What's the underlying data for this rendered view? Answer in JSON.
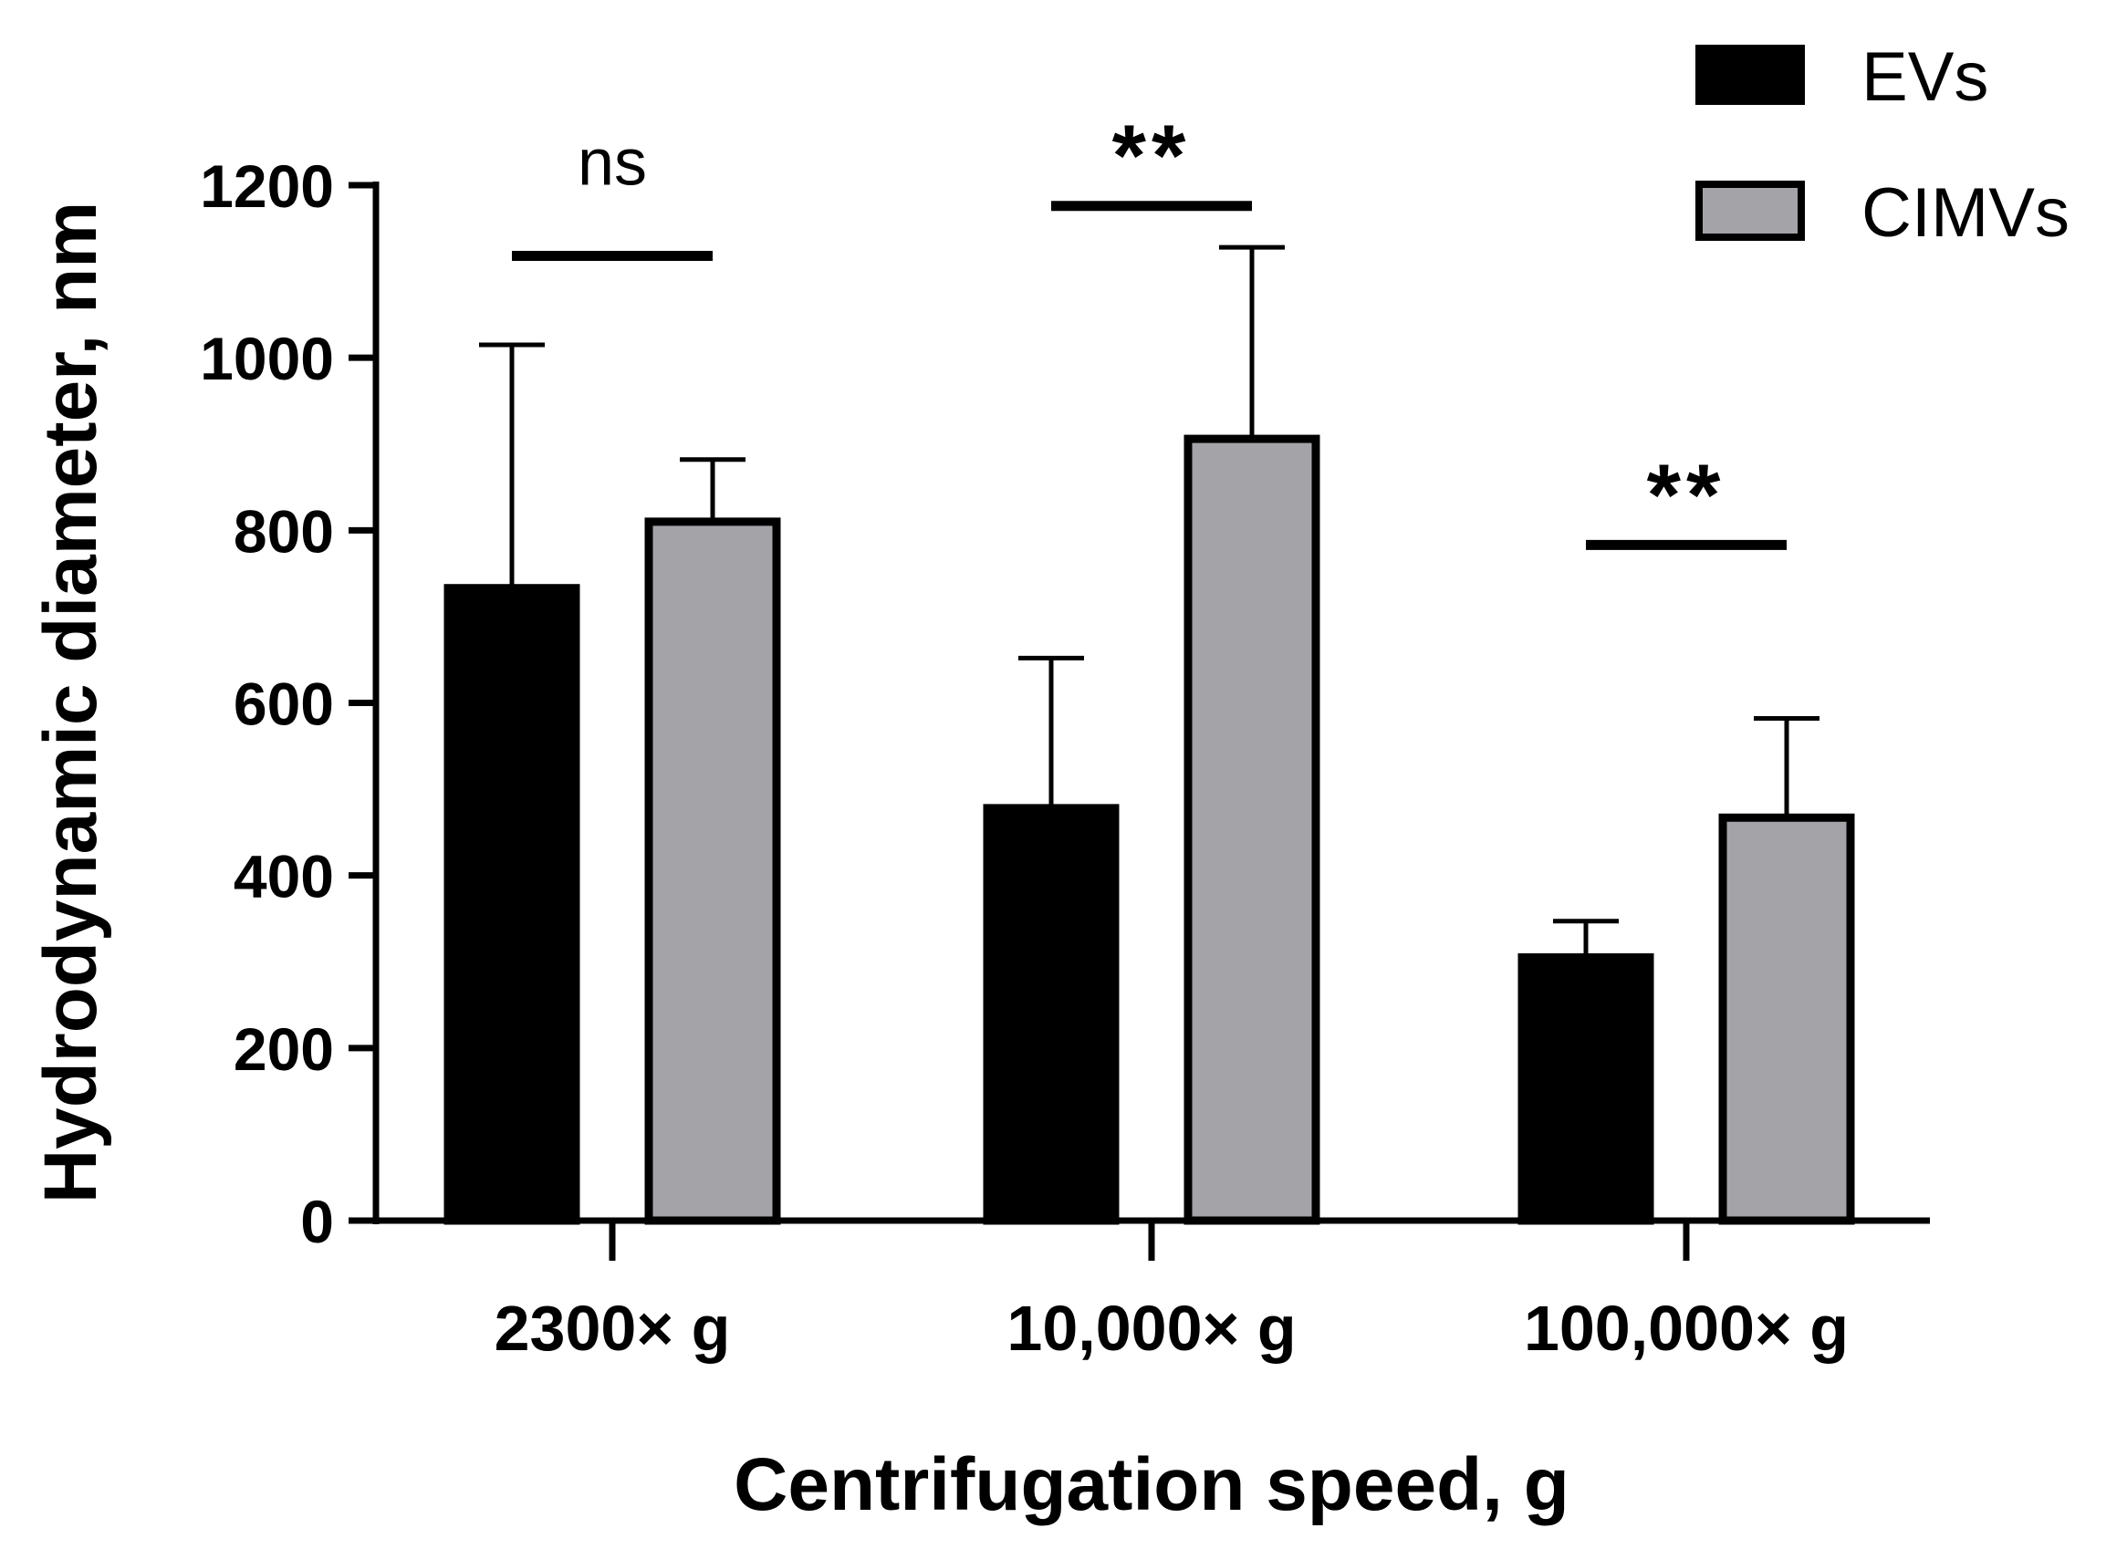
{
  "chart_data": {
    "type": "bar",
    "title": "",
    "xlabel": "Centrifugation speed, g",
    "ylabel": "Hydrodynamic diameter, nm",
    "ylim": [
      0,
      1200
    ],
    "yticks": [
      0,
      200,
      400,
      600,
      800,
      1000,
      1200
    ],
    "grid": false,
    "legend_position": "top-right",
    "categories": [
      "2300× g",
      "10,000× g",
      "100,000× g"
    ],
    "series": [
      {
        "name": "EVs",
        "color": "#000000",
        "values": [
          733,
          478,
          305
        ],
        "error": [
          282,
          174,
          42
        ]
      },
      {
        "name": "CIMVs",
        "color": "#a4a3a8",
        "values": [
          810,
          906,
          467
        ],
        "error": [
          72,
          222,
          115
        ]
      }
    ],
    "significance": [
      {
        "label": "ns",
        "level": 1118
      },
      {
        "label": "**",
        "level": 1176
      },
      {
        "label": "**",
        "level": 783
      }
    ]
  }
}
